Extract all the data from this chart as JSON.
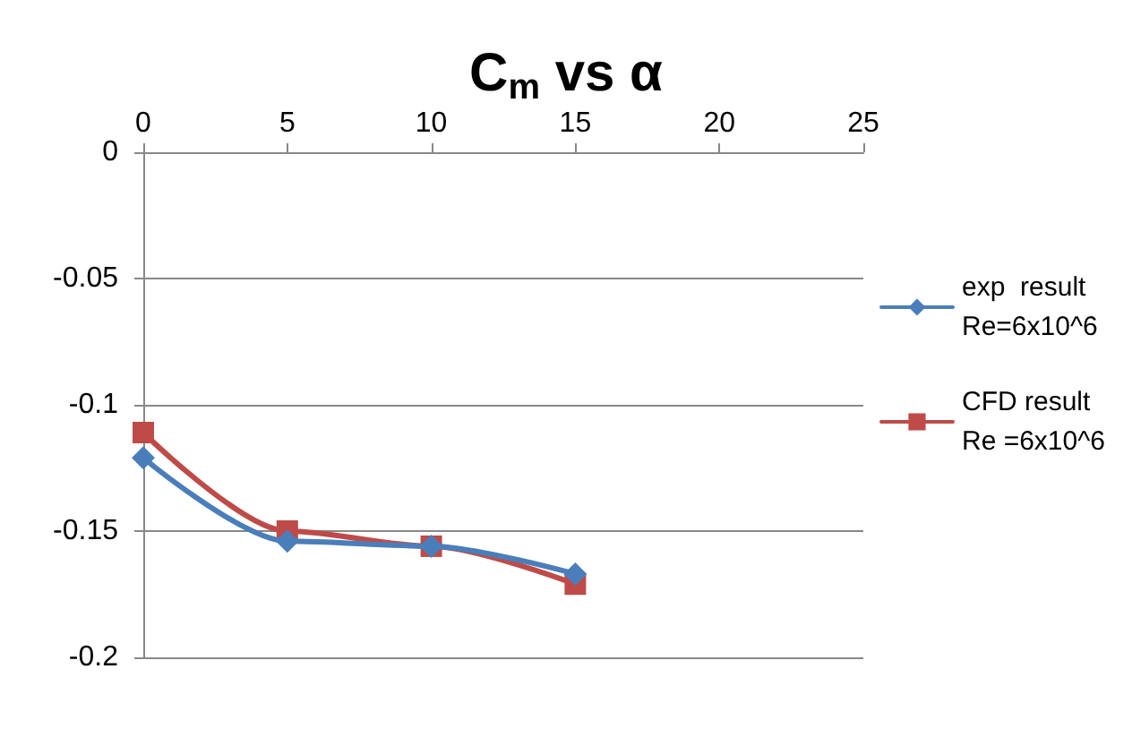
{
  "chart_data": {
    "type": "line",
    "title": "C$_{m}$ vs α",
    "x": [
      0,
      5,
      10,
      15
    ],
    "series": [
      {
        "name": "exp  result\nRe=6x10^6",
        "color": "#4a7ebb",
        "marker": "diamond",
        "values": [
          -0.121,
          -0.154,
          -0.156,
          -0.167
        ]
      },
      {
        "name": "CFD result\nRe =6x10^6",
        "color": "#be4b48",
        "marker": "square",
        "values": [
          -0.111,
          -0.15,
          -0.156,
          -0.171
        ]
      }
    ],
    "xlim": [
      0,
      25
    ],
    "xticks": [
      0,
      5,
      10,
      15,
      20,
      25
    ],
    "ylim": [
      -0.2,
      0
    ],
    "yticks": [
      0,
      -0.05,
      -0.1,
      -0.15,
      -0.2
    ],
    "grid": "y",
    "legend": "right"
  }
}
